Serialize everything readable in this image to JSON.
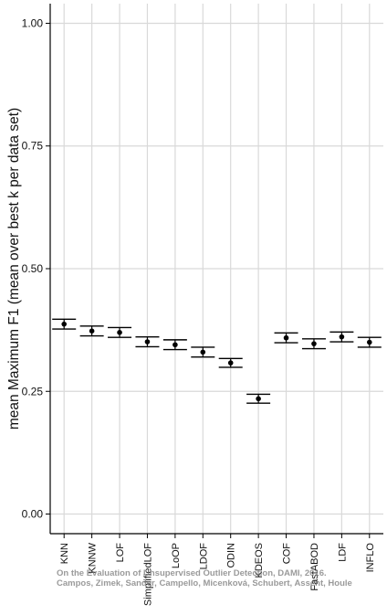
{
  "chart_data": {
    "type": "scatter",
    "title": "",
    "xlabel": "",
    "ylabel": "mean Maximum F1 (mean over best k per data set)",
    "ylim": [
      -0.04,
      1.04
    ],
    "yticks": [
      "0.00",
      "0.25",
      "0.50",
      "0.75",
      "1.00"
    ],
    "grid": true,
    "categories": [
      "KNN",
      "KNNW",
      "LOF",
      "SimplifiedLOF",
      "LoOP",
      "LDOF",
      "ODIN",
      "KDEOS",
      "COF",
      "FastABOD",
      "LDF",
      "INFLO"
    ],
    "series": [
      {
        "mean": [
          0.387,
          0.373,
          0.37,
          0.351,
          0.345,
          0.33,
          0.308,
          0.235,
          0.359,
          0.347,
          0.361,
          0.35
        ],
        "lower": [
          0.377,
          0.363,
          0.36,
          0.341,
          0.335,
          0.32,
          0.299,
          0.226,
          0.349,
          0.337,
          0.351,
          0.34
        ],
        "upper": [
          0.397,
          0.383,
          0.38,
          0.361,
          0.355,
          0.34,
          0.317,
          0.244,
          0.369,
          0.357,
          0.371,
          0.36
        ]
      }
    ]
  },
  "watermark": {
    "line1": "On the Evaluation of Unsupervised Outlier Detection, DAMI, 2016.",
    "line2": "Campos, Zimek, Sander, Campello, Micenková, Schubert, Assent, Houle"
  },
  "colors": {
    "marker": "#000000",
    "grid": "#d9d9d9",
    "axis": "#000000"
  }
}
